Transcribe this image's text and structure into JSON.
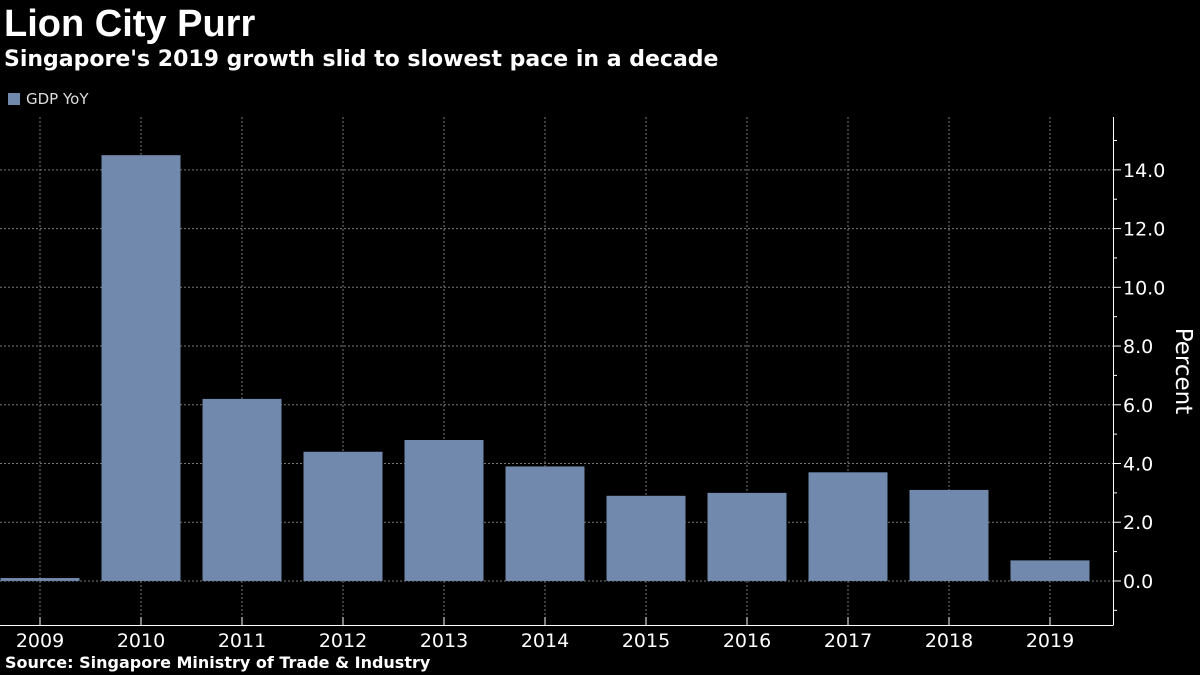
{
  "title": "Lion City Purr",
  "subtitle": "Singapore's 2019 growth slid to slowest pace in a decade",
  "source": "Source: Singapore Ministry of Trade & Industry",
  "chart_data": {
    "type": "bar",
    "categories": [
      "2009",
      "2010",
      "2011",
      "2012",
      "2013",
      "2014",
      "2015",
      "2016",
      "2017",
      "2018",
      "2019"
    ],
    "series": [
      {
        "name": "GDP YoY",
        "color": "#7189ad",
        "values": [
          0.1,
          14.5,
          6.2,
          4.4,
          4.8,
          3.9,
          2.9,
          3.0,
          3.7,
          3.1,
          0.7
        ]
      }
    ],
    "ylabel": "Percent",
    "ylim": [
      -1.5,
      15.8
    ],
    "yticks": [
      "0.0",
      "2.0",
      "4.0",
      "6.0",
      "8.0",
      "10.0",
      "12.0",
      "14.0"
    ],
    "ytick_values": [
      0,
      2,
      4,
      6,
      8,
      10,
      12,
      14
    ],
    "y_axis_side": "right",
    "grid": true,
    "legend_position": "top-left"
  }
}
